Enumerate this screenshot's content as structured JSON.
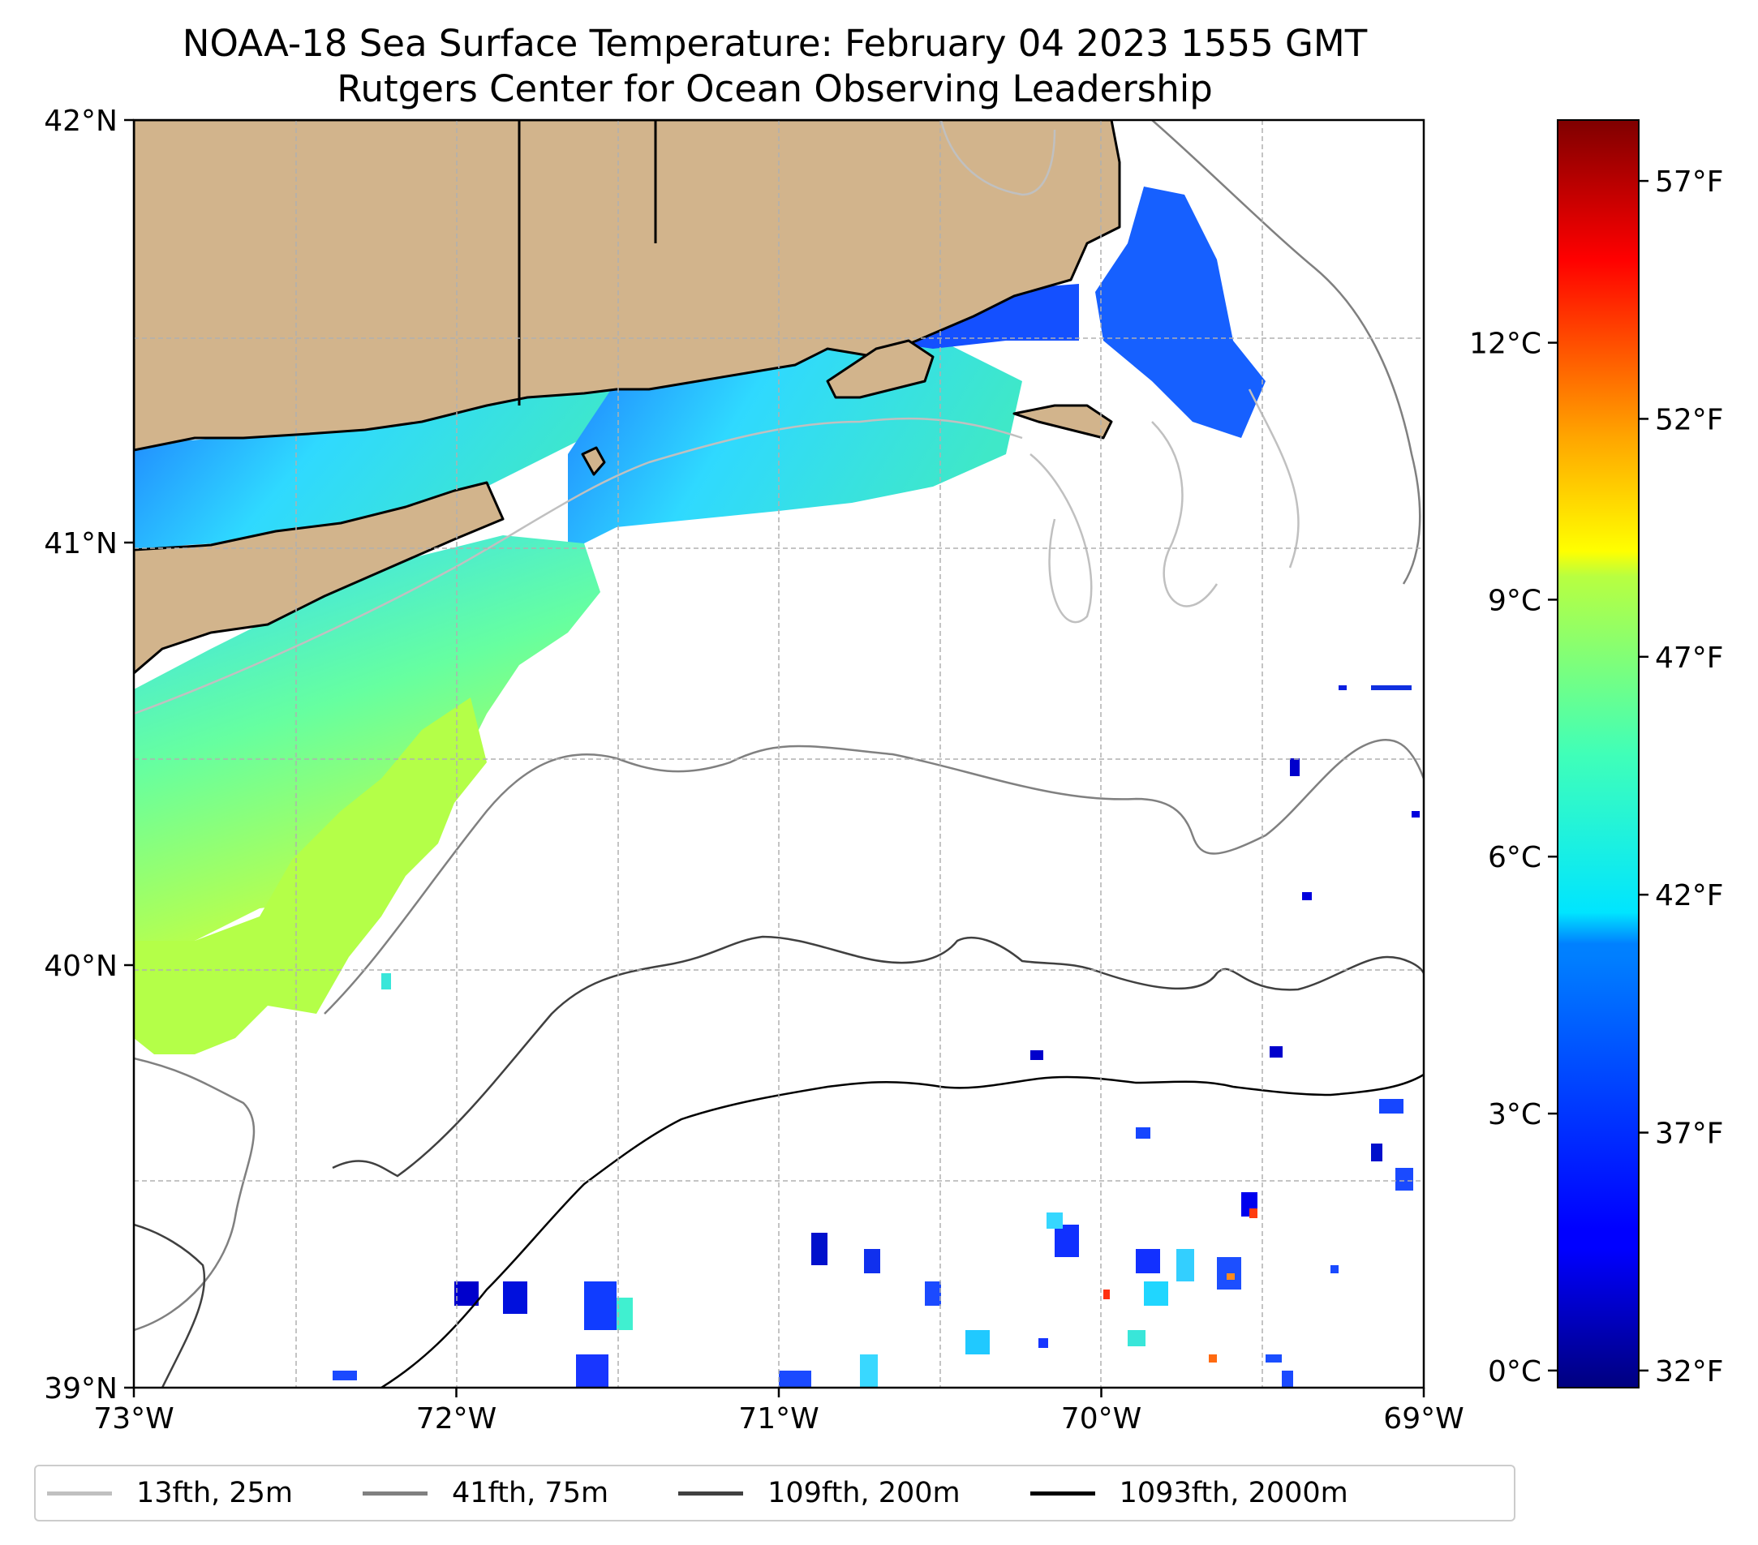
{
  "title": {
    "line1": "NOAA-18 Sea Surface Temperature: February 04 2023 1555 GMT",
    "line2": "Rutgers Center for Ocean Observing Leadership"
  },
  "map": {
    "lon_range": [
      -73,
      -69
    ],
    "lat_range": [
      39,
      42
    ],
    "x_ticks": [
      {
        "lon": -73,
        "label": "73°W"
      },
      {
        "lon": -72,
        "label": "72°W"
      },
      {
        "lon": -71,
        "label": "71°W"
      },
      {
        "lon": -70,
        "label": "70°W"
      },
      {
        "lon": -69,
        "label": "69°W"
      }
    ],
    "y_ticks": [
      {
        "lat": 39,
        "label": "39°N"
      },
      {
        "lat": 40,
        "label": "40°N"
      },
      {
        "lat": 41,
        "label": "41°N"
      },
      {
        "lat": 42,
        "label": "42°N"
      }
    ],
    "gridlines": true,
    "land_color": "#d2b48c",
    "coastline_color": "#000000"
  },
  "colorbar": {
    "colormap": "jet",
    "range_c": [
      -0.2,
      14.6
    ],
    "celsius_ticks": [
      {
        "value": 0,
        "label": "0°C"
      },
      {
        "value": 3,
        "label": "3°C"
      },
      {
        "value": 6,
        "label": "6°C"
      },
      {
        "value": 9,
        "label": "9°C"
      },
      {
        "value": 12,
        "label": "12°C"
      }
    ],
    "fahrenheit_ticks": [
      {
        "value": 32,
        "label": "32°F"
      },
      {
        "value": 37,
        "label": "37°F"
      },
      {
        "value": 42,
        "label": "42°F"
      },
      {
        "value": 47,
        "label": "47°F"
      },
      {
        "value": 52,
        "label": "52°F"
      },
      {
        "value": 57,
        "label": "57°F"
      }
    ]
  },
  "legend": {
    "placement": "bottom",
    "items": [
      {
        "label": "13fth, 25m",
        "color": "#c0c0c0"
      },
      {
        "label": "41fth, 75m",
        "color": "#808080"
      },
      {
        "label": "109fth, 200m",
        "color": "#404040"
      },
      {
        "label": "1093fth, 2000m",
        "color": "#000000"
      }
    ]
  }
}
